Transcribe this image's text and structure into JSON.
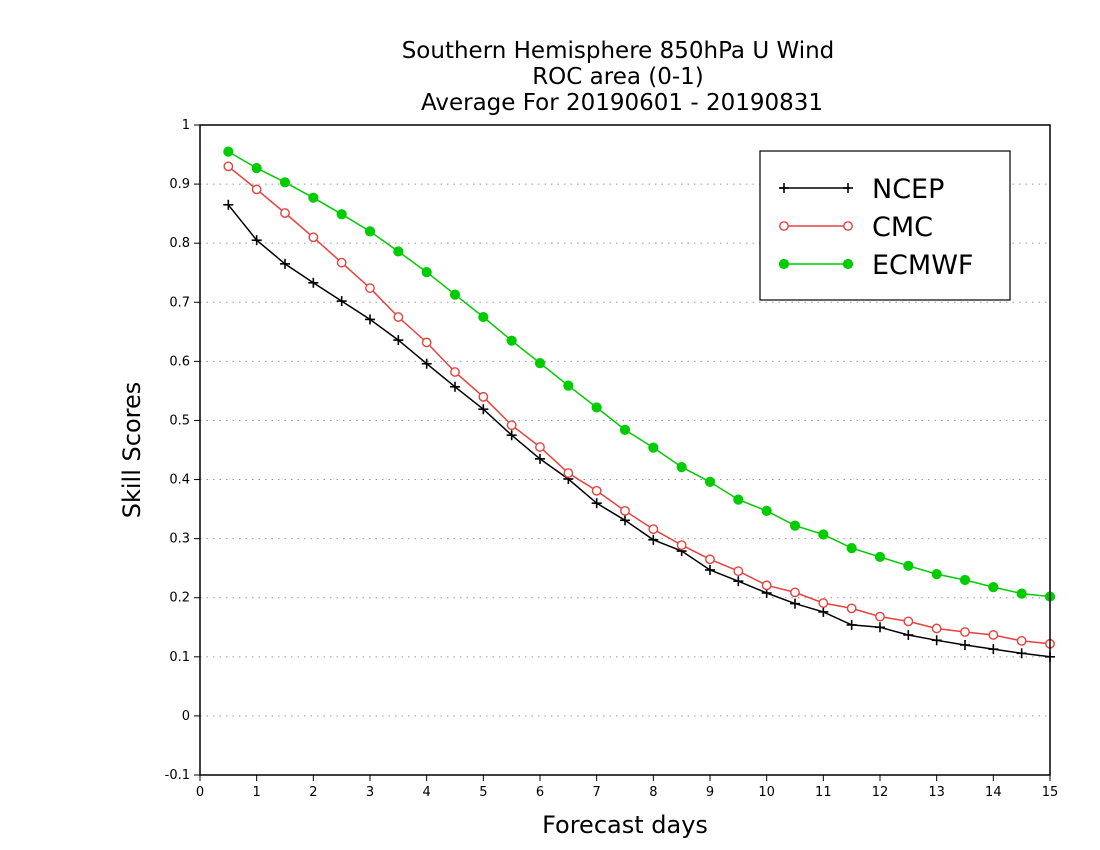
{
  "chart_data": {
    "type": "line",
    "title": [
      "Southern Hemisphere 850hPa U Wind",
      "ROC area (0-1)",
      "Average For 20190601 - 20190831"
    ],
    "xlabel": "Forecast days",
    "ylabel": "Skill Scores",
    "xlim": [
      0,
      15
    ],
    "ylim": [
      -0.1,
      1
    ],
    "x_ticks": [
      "0",
      "1",
      "2",
      "3",
      "4",
      "5",
      "6",
      "7",
      "8",
      "9",
      "10",
      "11",
      "12",
      "13",
      "14",
      "15"
    ],
    "y_ticks": [
      "-0.1",
      "0",
      "0.1",
      "0.2",
      "0.3",
      "0.4",
      "0.5",
      "0.6",
      "0.7",
      "0.8",
      "0.9",
      "1"
    ],
    "grid": "dotted horizontal",
    "legend": "top-right",
    "x": [
      0.5,
      1,
      1.5,
      2,
      2.5,
      3,
      3.5,
      4,
      4.5,
      5,
      5.5,
      6,
      6.5,
      7,
      7.5,
      8,
      8.5,
      9,
      9.5,
      10,
      10.5,
      11,
      11.5,
      12,
      12.5,
      13,
      13.5,
      14,
      14.5,
      15
    ],
    "series": [
      {
        "name": "NCEP",
        "color": "#000000",
        "marker": "plus",
        "values": [
          0.865,
          0.805,
          0.765,
          0.733,
          0.702,
          0.671,
          0.636,
          0.596,
          0.557,
          0.519,
          0.475,
          0.435,
          0.401,
          0.36,
          0.331,
          0.298,
          0.279,
          0.247,
          0.228,
          0.208,
          0.19,
          0.176,
          0.154,
          0.15,
          0.137,
          0.128,
          0.12,
          0.113,
          0.106,
          0.1
        ]
      },
      {
        "name": "CMC",
        "color": "#e8403c",
        "marker": "open-circle",
        "values": [
          0.93,
          0.891,
          0.851,
          0.81,
          0.767,
          0.724,
          0.675,
          0.632,
          0.582,
          0.54,
          0.492,
          0.455,
          0.411,
          0.381,
          0.347,
          0.316,
          0.289,
          0.265,
          0.245,
          0.221,
          0.209,
          0.191,
          0.182,
          0.168,
          0.16,
          0.148,
          0.142,
          0.137,
          0.127,
          0.122
        ]
      },
      {
        "name": "ECMWF",
        "color": "#00cc00",
        "marker": "filled-circle",
        "values": [
          0.955,
          0.927,
          0.903,
          0.877,
          0.849,
          0.82,
          0.786,
          0.751,
          0.713,
          0.675,
          0.635,
          0.597,
          0.559,
          0.522,
          0.484,
          0.454,
          0.421,
          0.396,
          0.366,
          0.347,
          0.322,
          0.307,
          0.284,
          0.269,
          0.254,
          0.24,
          0.23,
          0.218,
          0.207,
          0.202
        ]
      }
    ]
  }
}
